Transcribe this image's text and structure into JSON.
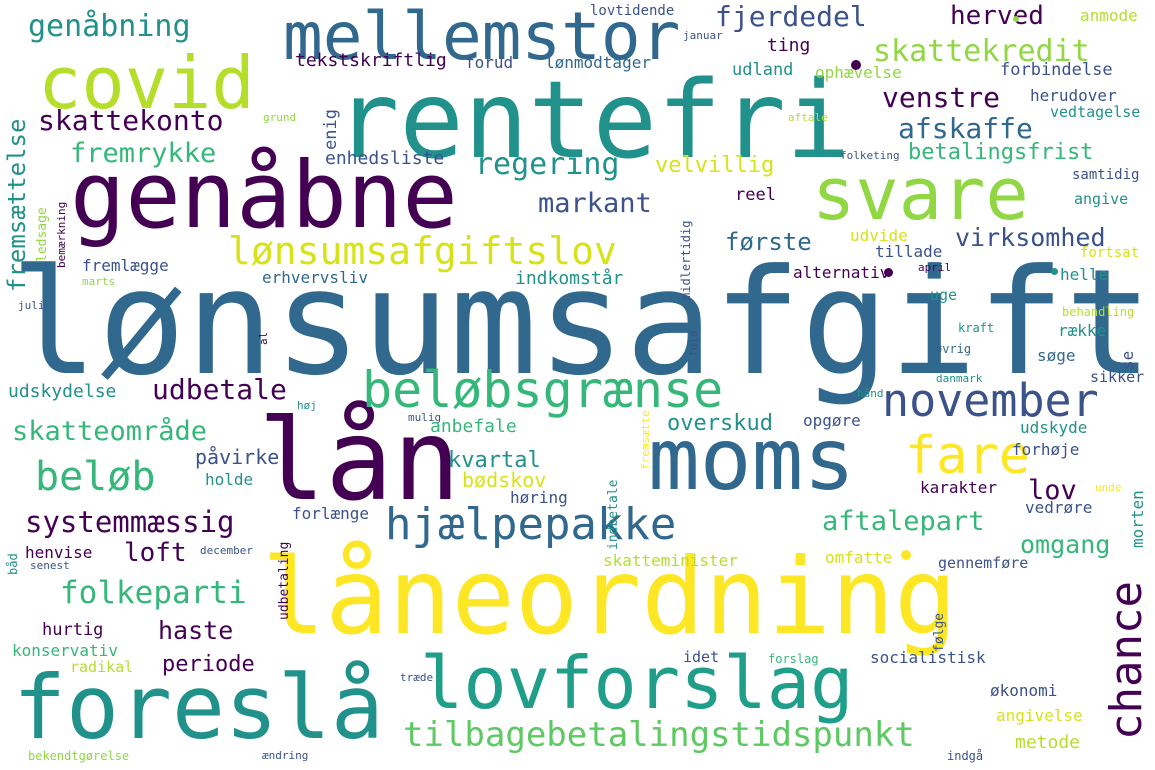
{
  "palette": {
    "purple": "#440154",
    "indigo": "#3b528b",
    "blue": "#31688e",
    "teal": "#21918c",
    "green": "#35b779",
    "lime": "#90d743",
    "yellow": "#fde725"
  },
  "words": {
    "lonsumsafgift": "lønsumsafgift",
    "laneordning": "låneordning",
    "rentefri": "rentefri",
    "genabne": "genåbne",
    "lan": "lån",
    "moms": "moms",
    "covid": "covid",
    "mellemstor": "mellemstor",
    "svare": "svare",
    "foresla": "foreslå",
    "lovforslag": "lovforslag",
    "lonsumsafgiftslov": "lønsumsafgiftslov",
    "belobsgraense": "beløbsgrænse",
    "hjaelpepakke": "hjælpepakke",
    "november": "november",
    "fare": "fare",
    "chance": "chance",
    "tilbagebetalingstidspunkt": "tilbagebetalingstidspunkt",
    "genabning": "genåbning",
    "fjerdedel": "fjerdedel",
    "herved": "herved",
    "skattekredit": "skattekredit",
    "tekstskriftlig": "tekstskriftlig",
    "forud": "forud",
    "lonmodtager": "lønmodtager",
    "udland": "udland",
    "ophaevelse": "ophævelse",
    "forbindelse": "forbindelse",
    "ting": "ting",
    "lovtidende": "lovtidende",
    "januar": "januar",
    "anmode": "anmode",
    "skattekonto": "skattekonto",
    "venstre": "venstre",
    "afskaffe": "afskaffe",
    "herudover": "herudover",
    "vedtagelse": "vedtagelse",
    "fremsaettelse": "fremsættelse",
    "fremrykke": "fremrykke",
    "regering": "regering",
    "velvillig": "velvillig",
    "enhedsliste": "enhedsliste",
    "betalingsfrist": "betalingsfrist",
    "folketing": "folketing",
    "samtidig": "samtidig",
    "markant": "markant",
    "reel": "reel",
    "angive": "angive",
    "forste": "første",
    "udvide": "udvide",
    "virksomhed": "virksomhed",
    "tillade": "tillade",
    "fortsat": "fortsat",
    "fremlaegge": "fremlægge",
    "erhvervsliv": "erhvervsliv",
    "indkomstar": "indkomstår",
    "alternativ": "alternativ",
    "april": "april",
    "helle": "helle",
    "uge": "uge",
    "behandling": "behandling",
    "kraft": "kraft",
    "raekke": "række",
    "ovrig": "øvrig",
    "soge": "søge",
    "sikker": "sikker",
    "danmark": "danmark",
    "hand": "hånd",
    "udbetale": "udbetale",
    "udskydelse": "udskydelse",
    "skatteomrade": "skatteområde",
    "anbefale": "anbefale",
    "overskud": "overskud",
    "opgore": "opgøre",
    "udskyde": "udskyde",
    "belob": "beløb",
    "pavirke": "påvirke",
    "kvartal": "kvartal",
    "holde": "holde",
    "bodskov": "bødskov",
    "horing": "høring",
    "forhoje": "forhøje",
    "karakter": "karakter",
    "lov": "lov",
    "systemmaessig": "systemmæssig",
    "forlaenge": "forlænge",
    "aftalepart": "aftalepart",
    "vedrore": "vedrøre",
    "loft": "loft",
    "omgang": "omgang",
    "henvise": "henvise",
    "december": "december",
    "skatteminister": "skatteminister",
    "omfatte": "omfatte",
    "gennemfore": "gennemføre",
    "folkeparti": "folkeparti",
    "haste": "haste",
    "hurtig": "hurtig",
    "konservativ": "konservativ",
    "periode": "periode",
    "radikal": "radikal",
    "idet": "idet",
    "forslag": "forslag",
    "socialistisk": "socialistisk",
    "okonomi": "økonomi",
    "angivelse": "angivelse",
    "metode": "metode",
    "bekendtgorelse": "bekendtgørelse",
    "aendring": "ændring",
    "indga": "indgå",
    "traede": "træde",
    "grund": "grund",
    "aftale": "aftale",
    "marts": "marts",
    "juli": "juli",
    "al": "al",
    "hoj": "høj",
    "mulig": "mulig",
    "senest": "senest",
    "bad": "båd",
    "enig": "enig",
    "ledsage": "ledsage",
    "bemaerkning": "bemærkning",
    "midlertidig": "midlertidig",
    "fuld": "fuld",
    "indbetale": "indbetale",
    "fremsaette": "fremsætte",
    "udbetaling": "udbetaling",
    "folge": "følge",
    "unde": "unde",
    "morten": "morten",
    "se": "se"
  }
}
